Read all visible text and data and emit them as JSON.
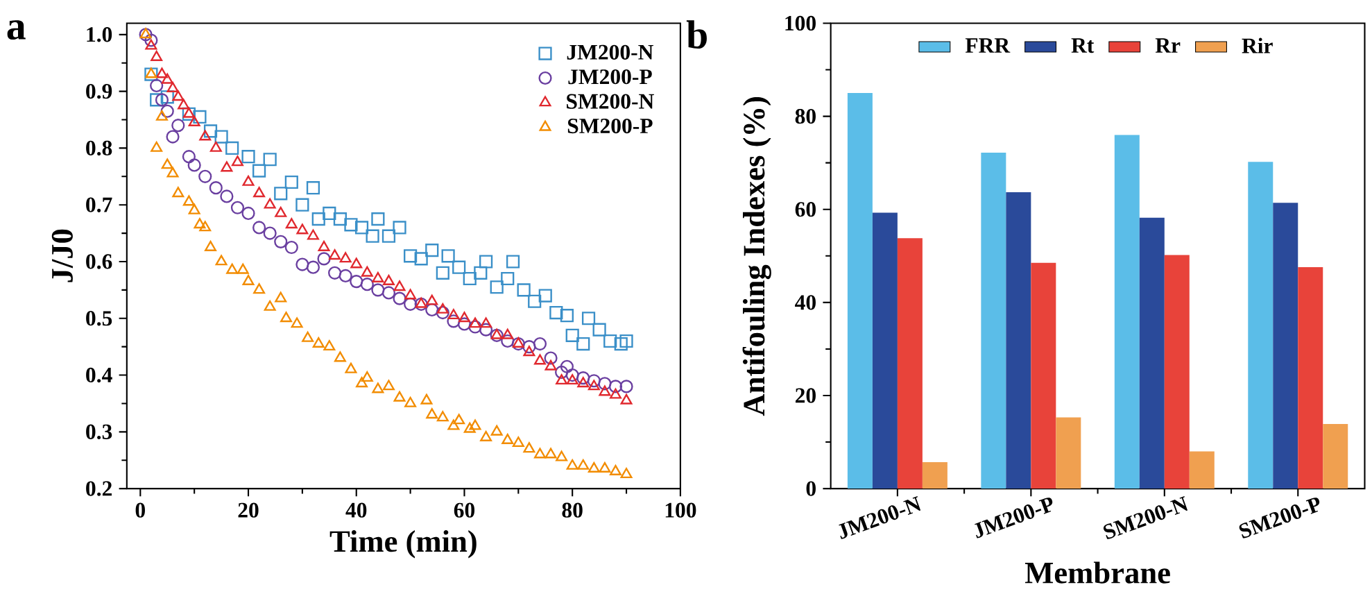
{
  "chart_data": [
    {
      "type": "scatter",
      "xlabel": "Time (min)",
      "ylabel": "J/J0",
      "annotations": [
        "a"
      ],
      "legend": "top right",
      "grid": false,
      "xlim": [
        -2.5,
        100
      ],
      "ylim": [
        0.2,
        1.02
      ],
      "xticks": [
        0,
        20,
        40,
        60,
        80,
        100
      ],
      "yticks": [
        0.2,
        0.3,
        0.4,
        0.5,
        0.6,
        0.7,
        0.8,
        0.9,
        {
          "value": 1,
          "label": "1.0"
        }
      ],
      "series": [
        {
          "name": "JM200-N",
          "color": "#3a8fc8",
          "marker": "square",
          "x": [
            2,
            3,
            5,
            9,
            11,
            13,
            15,
            17,
            20,
            22,
            24,
            26,
            28,
            30,
            32,
            33,
            35,
            37,
            39,
            41,
            43,
            44,
            46,
            48,
            50,
            52,
            54,
            56,
            57,
            59,
            61,
            63,
            64,
            66,
            68,
            69,
            71,
            73,
            75,
            77,
            79,
            80,
            82,
            83,
            85,
            87,
            89,
            90
          ],
          "values": [
            0.93,
            0.885,
            0.89,
            0.86,
            0.855,
            0.83,
            0.82,
            0.8,
            0.785,
            0.76,
            0.78,
            0.72,
            0.74,
            0.7,
            0.73,
            0.675,
            0.685,
            0.675,
            0.665,
            0.66,
            0.645,
            0.675,
            0.645,
            0.66,
            0.61,
            0.605,
            0.62,
            0.58,
            0.61,
            0.59,
            0.57,
            0.58,
            0.6,
            0.555,
            0.57,
            0.6,
            0.55,
            0.53,
            0.54,
            0.51,
            0.505,
            0.47,
            0.455,
            0.5,
            0.48,
            0.46,
            0.455,
            0.46
          ]
        },
        {
          "name": "JM200-P",
          "color": "#6a3fa0",
          "marker": "circle",
          "x": [
            1,
            2,
            3,
            4,
            5,
            6,
            7,
            9,
            10,
            12,
            14,
            16,
            18,
            20,
            22,
            24,
            26,
            28,
            30,
            32,
            34,
            36,
            38,
            40,
            42,
            44,
            46,
            48,
            50,
            52,
            54,
            56,
            58,
            60,
            62,
            64,
            66,
            68,
            70,
            72,
            74,
            76,
            78,
            79,
            80,
            82,
            84,
            86,
            88,
            90
          ],
          "values": [
            1.0,
            0.99,
            0.91,
            0.885,
            0.865,
            0.82,
            0.84,
            0.785,
            0.77,
            0.75,
            0.73,
            0.715,
            0.695,
            0.685,
            0.66,
            0.65,
            0.635,
            0.625,
            0.595,
            0.59,
            0.605,
            0.58,
            0.575,
            0.565,
            0.56,
            0.55,
            0.545,
            0.535,
            0.525,
            0.525,
            0.515,
            0.51,
            0.495,
            0.49,
            0.485,
            0.48,
            0.47,
            0.46,
            0.455,
            0.45,
            0.455,
            0.43,
            0.405,
            0.415,
            0.4,
            0.395,
            0.39,
            0.385,
            0.38,
            0.38
          ]
        },
        {
          "name": "SM200-N",
          "color": "#e0282e",
          "marker": "triangle",
          "x": [
            2,
            3,
            4,
            5,
            6,
            7,
            8,
            9,
            10,
            12,
            14,
            16,
            18,
            20,
            22,
            24,
            26,
            28,
            30,
            32,
            34,
            36,
            38,
            40,
            42,
            44,
            46,
            48,
            50,
            52,
            54,
            56,
            58,
            60,
            62,
            64,
            66,
            68,
            70,
            72,
            74,
            76,
            78,
            80,
            82,
            84,
            86,
            88,
            90
          ],
          "values": [
            0.98,
            0.96,
            0.93,
            0.92,
            0.905,
            0.89,
            0.875,
            0.86,
            0.845,
            0.82,
            0.8,
            0.765,
            0.775,
            0.74,
            0.72,
            0.7,
            0.685,
            0.665,
            0.655,
            0.645,
            0.625,
            0.61,
            0.605,
            0.595,
            0.58,
            0.57,
            0.565,
            0.555,
            0.54,
            0.525,
            0.53,
            0.515,
            0.505,
            0.5,
            0.49,
            0.49,
            0.47,
            0.47,
            0.455,
            0.44,
            0.425,
            0.415,
            0.39,
            0.39,
            0.385,
            0.38,
            0.37,
            0.365,
            0.355
          ]
        },
        {
          "name": "SM200-P",
          "color": "#f28c00",
          "marker": "triangle",
          "x": [
            1,
            2,
            3,
            4,
            5,
            6,
            7,
            9,
            10,
            11,
            12,
            13,
            15,
            17,
            19,
            20,
            22,
            24,
            26,
            27,
            29,
            31,
            33,
            35,
            37,
            39,
            41,
            42,
            44,
            46,
            48,
            50,
            53,
            54,
            56,
            58,
            59,
            61,
            62,
            64,
            66,
            68,
            70,
            72,
            74,
            76,
            78,
            80,
            82,
            84,
            86,
            88,
            90
          ],
          "values": [
            1.0,
            0.93,
            0.8,
            0.855,
            0.77,
            0.755,
            0.72,
            0.705,
            0.69,
            0.665,
            0.66,
            0.625,
            0.6,
            0.585,
            0.585,
            0.565,
            0.55,
            0.52,
            0.535,
            0.5,
            0.49,
            0.465,
            0.455,
            0.45,
            0.43,
            0.41,
            0.385,
            0.395,
            0.375,
            0.38,
            0.36,
            0.35,
            0.355,
            0.33,
            0.325,
            0.31,
            0.32,
            0.305,
            0.31,
            0.29,
            0.3,
            0.285,
            0.28,
            0.27,
            0.26,
            0.26,
            0.255,
            0.24,
            0.24,
            0.235,
            0.235,
            0.23,
            0.225
          ]
        }
      ]
    },
    {
      "type": "bar",
      "xlabel": "Membrane",
      "ylabel": "Antifouling Indexes (%)",
      "annotations": [
        "b"
      ],
      "legend": "top",
      "grid": false,
      "categories": [
        "JM200-N",
        "JM200-P",
        "SM200-N",
        "SM200-P"
      ],
      "ylim": [
        0,
        100
      ],
      "yticks": [
        0,
        20,
        40,
        60,
        80,
        100
      ],
      "series": [
        {
          "name": "FRR",
          "color": "#5bbde8",
          "values": [
            85.0,
            72.2,
            76.0,
            70.2
          ]
        },
        {
          "name": "Rt",
          "color": "#2a4a9a",
          "values": [
            59.3,
            63.7,
            58.2,
            61.4
          ]
        },
        {
          "name": "Rr",
          "color": "#e8433a",
          "values": [
            53.8,
            48.5,
            50.2,
            47.6
          ]
        },
        {
          "name": "Rir",
          "color": "#f0a050",
          "values": [
            5.7,
            15.3,
            8.0,
            13.9
          ]
        }
      ]
    }
  ]
}
